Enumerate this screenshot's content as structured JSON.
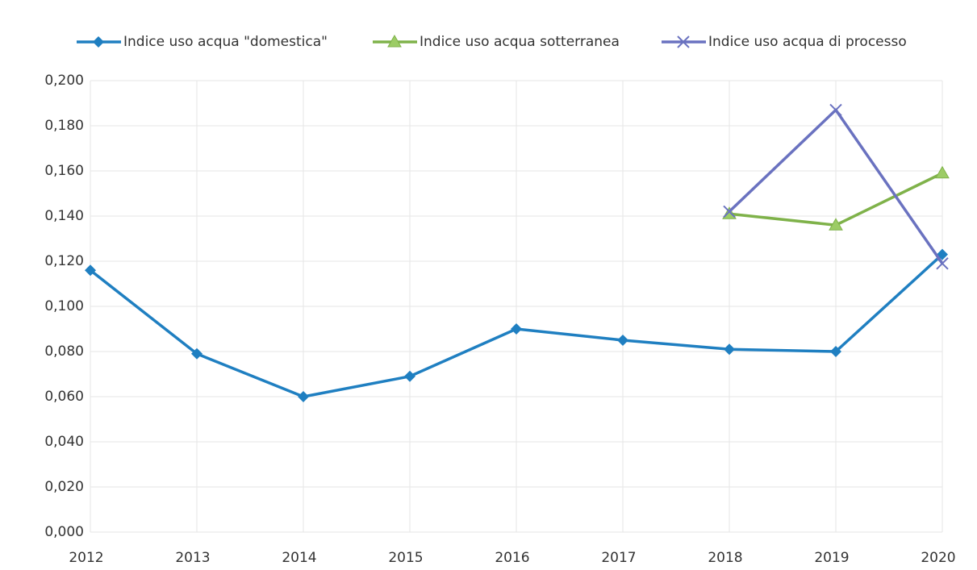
{
  "chart_data": {
    "type": "line",
    "categories": [
      "2012",
      "2013",
      "2014",
      "2015",
      "2016",
      "2017",
      "2018",
      "2019",
      "2020"
    ],
    "series": [
      {
        "name": "Indice uso acqua \"domestica\"",
        "color": "#1f7fc1",
        "marker": "diamond",
        "values": [
          0.116,
          0.079,
          0.06,
          0.069,
          0.09,
          0.085,
          0.081,
          0.08,
          0.123
        ]
      },
      {
        "name": "Indice uso acqua sotterranea",
        "color": "#7fb24a",
        "marker": "triangle",
        "values": [
          null,
          null,
          null,
          null,
          null,
          null,
          0.141,
          0.136,
          0.159
        ]
      },
      {
        "name": "Indice uso acqua di processo",
        "color": "#6a72c0",
        "marker": "x",
        "values": [
          null,
          null,
          null,
          null,
          null,
          null,
          0.142,
          0.187,
          0.119
        ]
      }
    ],
    "ylim": [
      0,
      0.2
    ],
    "yticks": [
      {
        "value": 0,
        "label": "0,000"
      },
      {
        "value": 0.02,
        "label": "0,020"
      },
      {
        "value": 0.04,
        "label": "0,040"
      },
      {
        "value": 0.06,
        "label": "0,060"
      },
      {
        "value": 0.08,
        "label": "0,080"
      },
      {
        "value": 0.1,
        "label": "0,100"
      },
      {
        "value": 0.12,
        "label": "0,120"
      },
      {
        "value": 0.14,
        "label": "0,140"
      },
      {
        "value": 0.16,
        "label": "0,160"
      },
      {
        "value": 0.18,
        "label": "0,180"
      },
      {
        "value": 0.2,
        "label": "0,200"
      }
    ],
    "grid": true,
    "legend": "top"
  }
}
